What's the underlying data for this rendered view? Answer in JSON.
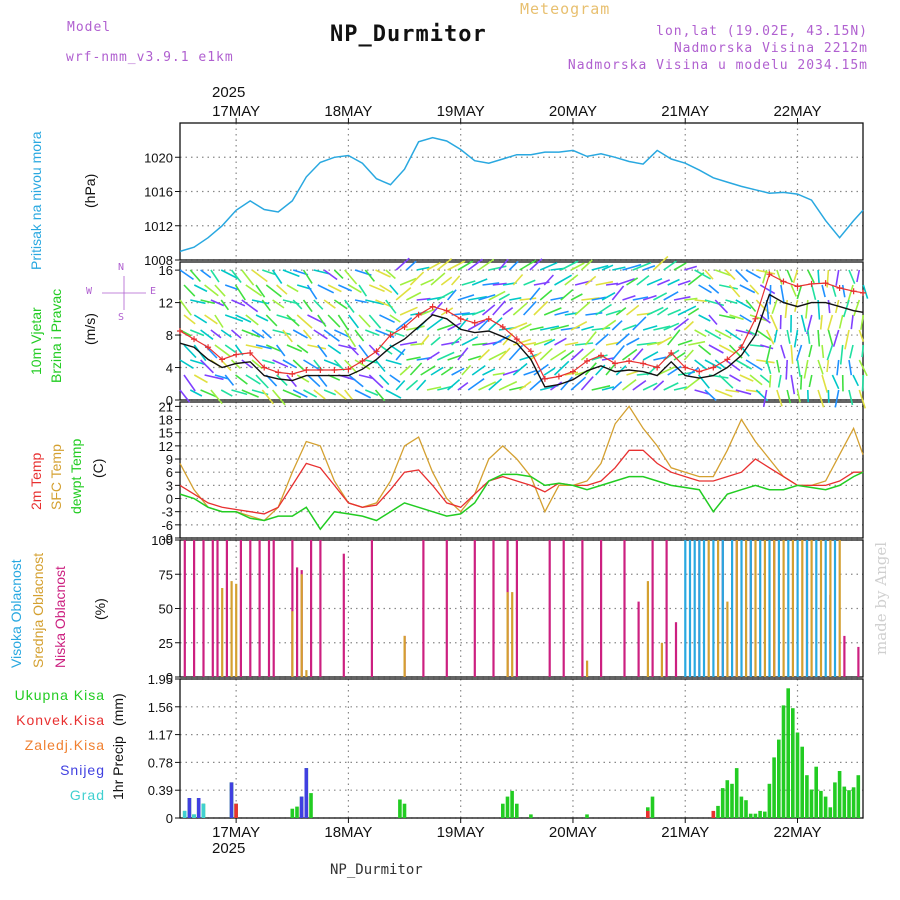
{
  "header": {
    "model_label": "Model",
    "model_name": "wrf-nmm_v3.9.1  e1km",
    "product": "Meteogram",
    "station": "NP_Durmitor",
    "lonlat": "lon,lat (19.02E, 43.15N)",
    "elevation": "Nadmorska Visina 2212m",
    "model_elevation": "Nadmorska Visina u modelu 2034.15m",
    "year": "2025",
    "footer_station": "NP_Durmitor",
    "signature": "made by Angel"
  },
  "colors": {
    "pressure": "#29a8e0",
    "wind_speed": "#111111",
    "wind_gust": "#e83030",
    "temp_2m": "#e83030",
    "temp_sfc": "#d4a030",
    "dewpoint": "#22cc22",
    "cloud_high": "#29a8e0",
    "cloud_mid": "#d4a030",
    "cloud_low": "#cc2080",
    "rain_total": "#22cc22",
    "rain_conv": "#e83030",
    "rain_frozen": "#f08030",
    "snow": "#4040e0",
    "graupel": "#40d0d0",
    "header_purple": "#b060d0",
    "header_orange": "#e8c070"
  },
  "chart_data": [
    {
      "type": "line",
      "panel": "pressure",
      "labels": [
        "Pritisak na nivou mora",
        "(hPa)"
      ],
      "ylim": [
        1008,
        1024
      ],
      "yticks": [
        1008,
        1012,
        1016,
        1020
      ],
      "x_unit": "hours from 2025-05-16 12:00",
      "xlim": [
        0,
        146
      ],
      "xticks": [
        "17MAY",
        "18MAY",
        "19MAY",
        "20MAY",
        "21MAY",
        "22MAY"
      ],
      "xtick_hours": [
        12,
        36,
        60,
        84,
        108,
        132
      ],
      "series": [
        {
          "key": "pressure",
          "x": [
            0,
            3,
            6,
            9,
            12,
            15,
            18,
            21,
            24,
            27,
            30,
            33,
            36,
            39,
            42,
            45,
            48,
            51,
            54,
            57,
            60,
            63,
            66,
            69,
            72,
            75,
            78,
            81,
            84,
            87,
            90,
            93,
            96,
            99,
            102,
            105,
            108,
            111,
            114,
            117,
            120,
            123,
            126,
            129,
            132,
            135,
            138,
            141,
            144,
            146
          ],
          "y": [
            1009,
            1009.5,
            1010.6,
            1012,
            1013.8,
            1014.9,
            1013.9,
            1013.6,
            1014.9,
            1017.7,
            1019.4,
            1020,
            1020.2,
            1019.3,
            1017.5,
            1016.8,
            1018.6,
            1021.8,
            1022.3,
            1021.9,
            1020.9,
            1019.6,
            1019.3,
            1019.8,
            1020.3,
            1020.3,
            1020.6,
            1020.6,
            1020.8,
            1020.1,
            1020.4,
            1020,
            1019.5,
            1019.2,
            1020.8,
            1019.8,
            1019.3,
            1018.5,
            1017.6,
            1017.1,
            1016.6,
            1016.2,
            1015.8,
            1015.9,
            1015.7,
            1015,
            1012.6,
            1010.6,
            1012.6,
            1013.8
          ]
        }
      ]
    },
    {
      "type": "line",
      "panel": "wind",
      "labels": [
        "10m Vjetar",
        "Brzina i Pravac",
        "(m/s)"
      ],
      "compass": {
        "n": "N",
        "e": "E",
        "s": "S",
        "w": "W"
      },
      "ylim": [
        0,
        17
      ],
      "yticks": [
        0,
        4,
        8,
        12,
        16
      ],
      "series": [
        {
          "key": "wind_speed",
          "name": "speed",
          "x": [
            0,
            3,
            6,
            9,
            12,
            15,
            18,
            21,
            24,
            27,
            30,
            33,
            36,
            39,
            42,
            45,
            48,
            51,
            54,
            57,
            60,
            63,
            66,
            69,
            72,
            75,
            78,
            81,
            84,
            87,
            90,
            93,
            96,
            99,
            102,
            105,
            108,
            111,
            114,
            117,
            120,
            123,
            126,
            129,
            132,
            135,
            138,
            141,
            144,
            146
          ],
          "y": [
            7,
            6.5,
            5,
            4,
            4.5,
            4.7,
            3,
            2.6,
            2.4,
            3,
            3,
            3,
            3,
            3.8,
            5,
            6.5,
            7.5,
            9,
            10.5,
            10,
            8.7,
            8.3,
            8.5,
            7.8,
            7,
            5,
            1.6,
            1.9,
            2.5,
            3.6,
            4.2,
            3.5,
            3.7,
            3.5,
            3,
            4.7,
            3,
            2.7,
            3,
            4,
            5.5,
            8,
            13,
            12,
            11.5,
            12,
            12,
            11.5,
            11,
            10.8
          ]
        },
        {
          "key": "wind_gust",
          "name": "gust",
          "x": [
            0,
            3,
            6,
            9,
            12,
            15,
            18,
            21,
            24,
            27,
            30,
            33,
            36,
            39,
            42,
            45,
            48,
            51,
            54,
            57,
            60,
            63,
            66,
            69,
            72,
            75,
            78,
            81,
            84,
            87,
            90,
            93,
            96,
            99,
            102,
            105,
            108,
            111,
            114,
            117,
            120,
            123,
            126,
            129,
            132,
            135,
            138,
            141,
            144,
            146
          ],
          "y": [
            8.5,
            7.5,
            6.5,
            5,
            5.6,
            5.8,
            4,
            3.4,
            3.2,
            3.7,
            3.7,
            3.7,
            3.8,
            4.8,
            6,
            8,
            9,
            10.5,
            11.5,
            11,
            10,
            9.5,
            10,
            9,
            7.5,
            6,
            2.6,
            2.9,
            3.5,
            4.8,
            5.5,
            4.5,
            4.8,
            4.5,
            4,
            5.8,
            4,
            3.5,
            4,
            5,
            6.5,
            10,
            15.5,
            14.6,
            14,
            14.3,
            14.4,
            13.8,
            13.4,
            13.2
          ]
        }
      ]
    },
    {
      "type": "line",
      "panel": "temperature",
      "labels": [
        "2m Temp",
        "SFC Temp",
        "dewpt Temp",
        "(C)"
      ],
      "ylim": [
        -9,
        22
      ],
      "yticks": [
        -9,
        -6,
        -3,
        0,
        3,
        6,
        9,
        12,
        15,
        18,
        21
      ],
      "series": [
        {
          "key": "temp_2m",
          "name": "2m Temp",
          "x": [
            0,
            3,
            6,
            9,
            12,
            15,
            18,
            21,
            24,
            27,
            30,
            33,
            36,
            39,
            42,
            45,
            48,
            51,
            54,
            57,
            60,
            63,
            66,
            69,
            72,
            75,
            78,
            81,
            84,
            87,
            90,
            93,
            96,
            99,
            102,
            105,
            108,
            111,
            114,
            117,
            120,
            123,
            126,
            129,
            132,
            135,
            138,
            141,
            144,
            146
          ],
          "y": [
            3,
            1,
            -1,
            -2,
            -2.5,
            -3,
            -3.5,
            -2,
            3,
            8,
            7,
            3,
            -1,
            -2,
            -1.5,
            2,
            6,
            6.5,
            3,
            -1,
            -2,
            1,
            4,
            5,
            4,
            3,
            1.5,
            3.5,
            3,
            3,
            4,
            7,
            11,
            11,
            8,
            6,
            5,
            4,
            4,
            5,
            6,
            9,
            7,
            5,
            3,
            3,
            3,
            4,
            6,
            6
          ]
        },
        {
          "key": "temp_sfc",
          "name": "SFC Temp",
          "x": [
            0,
            3,
            6,
            9,
            12,
            15,
            18,
            21,
            24,
            27,
            30,
            33,
            36,
            39,
            42,
            45,
            48,
            51,
            54,
            57,
            60,
            63,
            66,
            69,
            72,
            75,
            78,
            81,
            84,
            87,
            90,
            93,
            96,
            99,
            102,
            105,
            108,
            111,
            114,
            117,
            120,
            123,
            126,
            129,
            132,
            135,
            138,
            141,
            144,
            146
          ],
          "y": [
            8,
            2,
            -2,
            -3,
            -3,
            -4,
            -5,
            -2,
            6,
            13,
            12,
            4,
            -1,
            -2,
            -1,
            4,
            12,
            14,
            6,
            0,
            -3,
            1,
            9,
            12,
            9,
            5,
            -3,
            3,
            3,
            4,
            8,
            17,
            21,
            16,
            12,
            7,
            6,
            5,
            5,
            11,
            18,
            13,
            9,
            5,
            3,
            3,
            4,
            10,
            16,
            10
          ]
        },
        {
          "key": "dewpoint",
          "name": "dewpt Temp",
          "x": [
            0,
            3,
            6,
            9,
            12,
            15,
            18,
            21,
            24,
            27,
            30,
            33,
            36,
            39,
            42,
            45,
            48,
            51,
            54,
            57,
            60,
            63,
            66,
            69,
            72,
            75,
            78,
            81,
            84,
            87,
            90,
            93,
            96,
            99,
            102,
            105,
            108,
            111,
            114,
            117,
            120,
            123,
            126,
            129,
            132,
            135,
            138,
            141,
            144,
            146
          ],
          "y": [
            1,
            0,
            -2,
            -3,
            -3,
            -4.5,
            -5,
            -4,
            -4,
            -2,
            -7,
            -3,
            -3.5,
            -4,
            -5,
            -3,
            -1,
            -2,
            -3,
            -4,
            -3.5,
            -1,
            4,
            5.5,
            5.5,
            5,
            3,
            3.5,
            3,
            2,
            3,
            4,
            5,
            5,
            4,
            3,
            2.5,
            2,
            -3,
            1,
            2,
            3,
            2,
            2,
            3,
            2.5,
            2,
            3,
            5,
            6
          ]
        }
      ]
    },
    {
      "type": "bar",
      "panel": "cloud",
      "labels": [
        "Visoka Oblacnost",
        "Srednja Oblacnost",
        "Niska Oblacnost",
        "(%)"
      ],
      "ylim": [
        0,
        100
      ],
      "yticks": [
        0,
        25,
        50,
        75,
        100
      ],
      "series": [
        {
          "key": "cloud_low",
          "name": "Niska Oblacnost",
          "x": [
            1,
            3,
            5,
            7,
            8,
            10,
            13,
            15,
            17,
            19,
            20,
            24,
            25,
            26,
            28,
            30,
            35,
            41,
            48,
            52,
            57,
            63,
            67,
            70,
            72,
            79,
            82,
            86,
            90,
            95,
            98,
            101,
            104,
            106,
            111,
            116,
            119,
            122,
            127,
            134,
            139,
            142,
            145
          ],
          "y": [
            100,
            100,
            100,
            100,
            100,
            100,
            100,
            100,
            100,
            100,
            100,
            100,
            80,
            78,
            100,
            100,
            90,
            100,
            30,
            100,
            100,
            100,
            100,
            100,
            100,
            100,
            100,
            100,
            100,
            100,
            55,
            100,
            100,
            40,
            100,
            100,
            100,
            100,
            100,
            100,
            60,
            30,
            22
          ]
        },
        {
          "key": "cloud_mid",
          "name": "Srednja Oblacnost",
          "x": [
            9,
            11,
            12,
            24,
            26,
            27,
            48,
            70,
            71,
            87,
            100,
            103,
            113,
            115,
            117,
            119,
            121,
            123,
            125,
            127,
            129,
            131,
            133,
            135,
            137,
            139,
            141
          ],
          "y": [
            65,
            70,
            68,
            48,
            75,
            5,
            30,
            62,
            62,
            12,
            70,
            25,
            100,
            100,
            55,
            100,
            100,
            100,
            100,
            100,
            100,
            100,
            100,
            100,
            100,
            100,
            100
          ]
        },
        {
          "key": "cloud_high",
          "name": "Visoka Oblacnost",
          "x": [
            108,
            109,
            110,
            111,
            112,
            114,
            116,
            118,
            120,
            122,
            124,
            126,
            128,
            130,
            132,
            134,
            136,
            138,
            140
          ],
          "y": [
            100,
            100,
            100,
            100,
            100,
            100,
            100,
            100,
            100,
            100,
            100,
            100,
            100,
            100,
            100,
            100,
            100,
            100,
            100
          ]
        }
      ]
    },
    {
      "type": "bar",
      "panel": "precip",
      "labels": [
        "1hr Precip",
        "(mm)"
      ],
      "legend": [
        "Ukupna Kisa",
        "Konvek.Kisa",
        "Zaledj.Kisa",
        "Snijeg",
        "Grad"
      ],
      "ylim": [
        0,
        1.95
      ],
      "yticks": [
        0,
        0.39,
        0.78,
        1.17,
        1.56,
        1.95
      ],
      "series": [
        {
          "key": "rain_total",
          "name": "Ukupna Kisa",
          "x": [
            1,
            2,
            3,
            4,
            5,
            11,
            12,
            24,
            25,
            26,
            27,
            28,
            47,
            48,
            69,
            70,
            71,
            72,
            75,
            87,
            100,
            101,
            114,
            115,
            116,
            117,
            118,
            119,
            120,
            121,
            122,
            123,
            124,
            125,
            126,
            127,
            128,
            129,
            130,
            131,
            132,
            133,
            134,
            135,
            136,
            137,
            138,
            139,
            140,
            141,
            142,
            143,
            144,
            145
          ],
          "y": [
            0.1,
            0.28,
            0.05,
            0.28,
            0.2,
            0.5,
            0.2,
            0.13,
            0.16,
            0.3,
            0.7,
            0.35,
            0.26,
            0.2,
            0.2,
            0.3,
            0.38,
            0.2,
            0.05,
            0.05,
            0.15,
            0.3,
            0.09,
            0.17,
            0.42,
            0.53,
            0.48,
            0.7,
            0.3,
            0.25,
            0.06,
            0.06,
            0.1,
            0.09,
            0.48,
            0.85,
            1.1,
            1.58,
            1.82,
            1.54,
            1.2,
            1.0,
            0.6,
            0.4,
            0.72,
            0.38,
            0.3,
            0.15,
            0.5,
            0.66,
            0.44,
            0.39,
            0.43,
            0.6
          ]
        },
        {
          "key": "rain_conv",
          "name": "Konvek.Kisa",
          "x": [
            12,
            26,
            27,
            100,
            114
          ],
          "y": [
            0.2,
            0.15,
            0.3,
            0.1,
            0.1
          ]
        },
        {
          "key": "snow",
          "name": "Snijeg",
          "x": [
            2,
            4,
            11,
            26,
            27
          ],
          "y": [
            0.28,
            0.28,
            0.5,
            0.3,
            0.7
          ]
        },
        {
          "key": "graupel",
          "name": "Grad",
          "x": [
            1,
            3,
            5
          ],
          "y": [
            0.1,
            0.05,
            0.2
          ]
        }
      ]
    }
  ]
}
